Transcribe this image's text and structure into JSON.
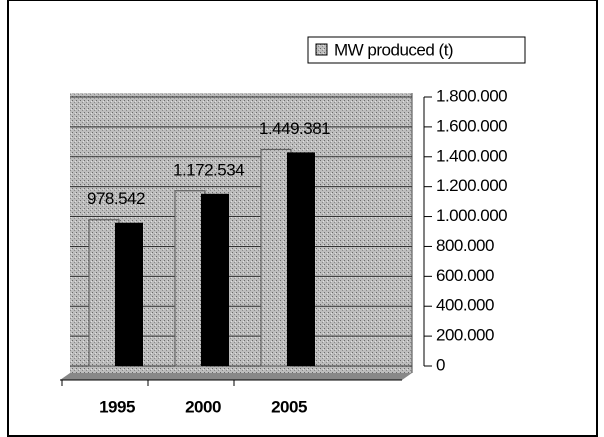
{
  "chart_data": {
    "type": "bar",
    "categories": [
      "1995",
      "2000",
      "2005"
    ],
    "series": [
      {
        "name": "MW produced (t)",
        "color": "#000000",
        "values": [
          978542,
          1172534,
          1449381
        ],
        "value_labels": [
          "978.542",
          "1.172.534",
          "1.449.381"
        ]
      }
    ],
    "ylim": [
      0,
      1800000
    ],
    "yticks": [
      {
        "value": 0,
        "label": "0"
      },
      {
        "value": 200000,
        "label": "200.000"
      },
      {
        "value": 400000,
        "label": "400.000"
      },
      {
        "value": 600000,
        "label": "600.000"
      },
      {
        "value": 800000,
        "label": "800.000"
      },
      {
        "value": 1000000,
        "label": "1.000.000"
      },
      {
        "value": 1200000,
        "label": "1.200.000"
      },
      {
        "value": 1400000,
        "label": "1.400.000"
      },
      {
        "value": 1600000,
        "label": "1.600.000"
      },
      {
        "value": 1800000,
        "label": "1.800.000"
      }
    ],
    "grid": true,
    "legend": "top-right"
  }
}
